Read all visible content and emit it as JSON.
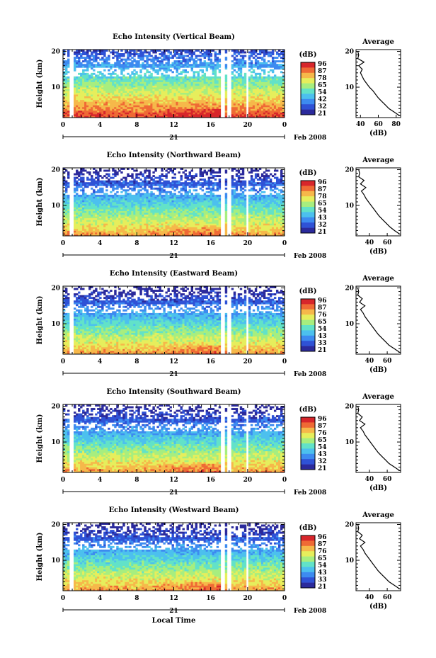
{
  "figure": {
    "month_label": "Feb 2008",
    "day_label": "21",
    "xlabel": "Local Time"
  },
  "colors": {
    "scale": [
      "#2b2a9c",
      "#2f52d6",
      "#3d8bf0",
      "#4cc0ee",
      "#62e2c8",
      "#a7ee7f",
      "#e6ee5c",
      "#f6b84a",
      "#ef6a35",
      "#d7262b"
    ]
  },
  "chart_data": [
    {
      "type": "heatmap",
      "title": "Echo Intensity (Vertical Beam)",
      "xlabel": "",
      "ylabel": "Height (km)",
      "x_ticks": [
        "0",
        "4",
        "8",
        "12",
        "16",
        "20",
        "0"
      ],
      "xlim": [
        0,
        24
      ],
      "y_ticks": [
        "10",
        "20"
      ],
      "ylim": [
        1.5,
        20.5
      ],
      "colorbar": {
        "unit": "(dB)",
        "ticks": [
          "96",
          "87",
          "78",
          "65",
          "54",
          "42",
          "32",
          "21"
        ]
      },
      "data_gaps_hours": [
        0.9,
        17.3,
        18.0,
        19.9
      ],
      "average_profile": {
        "title": "Average",
        "xlabel": "(dB)",
        "x_ticks": [
          "40",
          "60",
          "80"
        ],
        "xlim": [
          35,
          85
        ],
        "y_ticks": [
          "10",
          "20"
        ],
        "height_km": [
          2,
          3,
          4,
          5,
          6,
          7,
          8,
          9,
          10,
          11,
          12,
          13,
          14,
          15,
          16,
          17,
          18,
          19,
          20
        ],
        "db": [
          84,
          78,
          72,
          68,
          64,
          60,
          57,
          54,
          50,
          47,
          44,
          42,
          40,
          42,
          38,
          44,
          37,
          38,
          37
        ]
      }
    },
    {
      "type": "heatmap",
      "title": "Echo Intensity (Northward Beam)",
      "xlabel": "",
      "ylabel": "Height (km)",
      "x_ticks": [
        "0",
        "4",
        "8",
        "12",
        "16",
        "20",
        "0"
      ],
      "xlim": [
        0,
        24
      ],
      "y_ticks": [
        "10",
        "20"
      ],
      "ylim": [
        1.5,
        20.5
      ],
      "colorbar": {
        "unit": "(dB)",
        "ticks": [
          "96",
          "87",
          "78",
          "65",
          "54",
          "43",
          "32",
          "21"
        ]
      },
      "data_gaps_hours": [
        0.9,
        17.3,
        18.0,
        19.9
      ],
      "average_profile": {
        "title": "Average",
        "xlabel": "(dB)",
        "x_ticks": [
          "40",
          "60"
        ],
        "xlim": [
          25,
          75
        ],
        "y_ticks": [
          "10",
          "20"
        ],
        "height_km": [
          2,
          3,
          4,
          5,
          6,
          7,
          8,
          9,
          10,
          11,
          12,
          13,
          14,
          15,
          16,
          17,
          18,
          19,
          20
        ],
        "db": [
          74,
          68,
          63,
          59,
          55,
          51,
          48,
          45,
          42,
          39,
          36,
          34,
          31,
          36,
          30,
          34,
          28,
          29,
          28
        ]
      }
    },
    {
      "type": "heatmap",
      "title": "Echo Intensity (Eastward Beam)",
      "xlabel": "",
      "ylabel": "Height (km)",
      "x_ticks": [
        "0",
        "4",
        "8",
        "12",
        "16",
        "20",
        "0"
      ],
      "xlim": [
        0,
        24
      ],
      "y_ticks": [
        "10",
        "20"
      ],
      "ylim": [
        1.5,
        20.5
      ],
      "colorbar": {
        "unit": "(dB)",
        "ticks": [
          "96",
          "87",
          "76",
          "65",
          "54",
          "43",
          "33",
          "21"
        ]
      },
      "data_gaps_hours": [
        0.9,
        17.3,
        18.0,
        19.9
      ],
      "average_profile": {
        "title": "Average",
        "xlabel": "(dB)",
        "x_ticks": [
          "40",
          "60"
        ],
        "xlim": [
          25,
          75
        ],
        "y_ticks": [
          "10",
          "20"
        ],
        "height_km": [
          2,
          3,
          4,
          5,
          6,
          7,
          8,
          9,
          10,
          11,
          12,
          13,
          14,
          15,
          16,
          17,
          18,
          19,
          20
        ],
        "db": [
          74,
          68,
          62,
          58,
          54,
          50,
          47,
          44,
          41,
          38,
          35,
          33,
          30,
          35,
          29,
          32,
          27,
          28,
          27
        ]
      }
    },
    {
      "type": "heatmap",
      "title": "Echo Intensity (Southward Beam)",
      "xlabel": "",
      "ylabel": "Height (km)",
      "x_ticks": [
        "0",
        "4",
        "8",
        "12",
        "16",
        "20",
        "0"
      ],
      "xlim": [
        0,
        24
      ],
      "y_ticks": [
        "10",
        "20"
      ],
      "ylim": [
        1.5,
        20.5
      ],
      "colorbar": {
        "unit": "(dB)",
        "ticks": [
          "96",
          "87",
          "76",
          "65",
          "54",
          "43",
          "32",
          "21"
        ]
      },
      "data_gaps_hours": [
        0.9,
        17.3,
        18.0,
        19.9
      ],
      "average_profile": {
        "title": "Average",
        "xlabel": "(dB)",
        "x_ticks": [
          "40",
          "60"
        ],
        "xlim": [
          25,
          75
        ],
        "y_ticks": [
          "10",
          "20"
        ],
        "height_km": [
          2,
          3,
          4,
          5,
          6,
          7,
          8,
          9,
          10,
          11,
          12,
          13,
          14,
          15,
          16,
          17,
          18,
          19,
          20
        ],
        "db": [
          74,
          68,
          62,
          58,
          54,
          50,
          47,
          44,
          41,
          38,
          35,
          33,
          30,
          35,
          29,
          32,
          27,
          28,
          27
        ]
      }
    },
    {
      "type": "heatmap",
      "title": "Echo Intensity (Westward Beam)",
      "xlabel": "Local Time",
      "ylabel": "Height (km)",
      "x_ticks": [
        "0",
        "4",
        "8",
        "12",
        "16",
        "20",
        "0"
      ],
      "xlim": [
        0,
        24
      ],
      "y_ticks": [
        "10",
        "20"
      ],
      "ylim": [
        1.5,
        20.5
      ],
      "colorbar": {
        "unit": "(dB)",
        "ticks": [
          "96",
          "87",
          "76",
          "65",
          "54",
          "43",
          "33",
          "21"
        ]
      },
      "data_gaps_hours": [
        0.9,
        17.3,
        18.0,
        19.9
      ],
      "average_profile": {
        "title": "Average",
        "xlabel": "(dB)",
        "x_ticks": [
          "40",
          "60"
        ],
        "xlim": [
          25,
          75
        ],
        "y_ticks": [
          "10",
          "20"
        ],
        "height_km": [
          2,
          3,
          4,
          5,
          6,
          7,
          8,
          9,
          10,
          11,
          12,
          13,
          14,
          15,
          16,
          17,
          18,
          19,
          20
        ],
        "db": [
          74,
          68,
          62,
          58,
          54,
          50,
          47,
          44,
          41,
          38,
          35,
          33,
          30,
          35,
          29,
          32,
          27,
          28,
          27
        ]
      }
    }
  ]
}
